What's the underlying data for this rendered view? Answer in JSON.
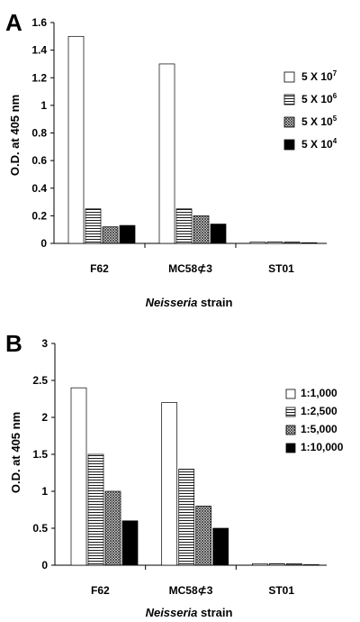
{
  "chart_data": [
    {
      "type": "bar",
      "panel_label": "A",
      "ylabel": "O.D. at 405 nm",
      "xlabel_italic": "Neisseria",
      "xlabel_rest": " strain",
      "ylim": [
        0,
        1.6
      ],
      "yticks": [
        "0",
        "0.2",
        "0.4",
        "0.6",
        "0.8",
        "1",
        "1.2",
        "1.4",
        "1.6"
      ],
      "categories": [
        "F62",
        "MC58⊄3",
        "ST01"
      ],
      "legend_position": "right",
      "series": [
        {
          "name": "5 X 10",
          "sup": "7",
          "pattern": "white",
          "values": [
            1.5,
            1.3,
            0.01
          ]
        },
        {
          "name": "5 X 10",
          "sup": "6",
          "pattern": "hlines",
          "values": [
            0.25,
            0.25,
            0.01
          ]
        },
        {
          "name": "5 X 10",
          "sup": "5",
          "pattern": "crosshatch",
          "values": [
            0.12,
            0.2,
            0.01
          ]
        },
        {
          "name": "5 X 10",
          "sup": "4",
          "pattern": "black",
          "values": [
            0.13,
            0.14,
            0.005
          ]
        }
      ]
    },
    {
      "type": "bar",
      "panel_label": "B",
      "ylabel": "O.D. at 405 nm",
      "xlabel_italic": "Neisseria",
      "xlabel_rest": " strain",
      "ylim": [
        0,
        3
      ],
      "yticks": [
        "0",
        "0.5",
        "1",
        "1.5",
        "2",
        "2.5",
        "3"
      ],
      "categories": [
        "F62",
        "MC58⊄3",
        "ST01"
      ],
      "legend_position": "top-right",
      "series": [
        {
          "name": "1:1,000",
          "sup": "",
          "pattern": "white",
          "values": [
            2.4,
            2.2,
            0.02
          ]
        },
        {
          "name": "1:2,500",
          "sup": "",
          "pattern": "hlines",
          "values": [
            1.5,
            1.3,
            0.02
          ]
        },
        {
          "name": "1:5,000",
          "sup": "",
          "pattern": "crosshatch",
          "values": [
            1.0,
            0.8,
            0.02
          ]
        },
        {
          "name": "1:10,000",
          "sup": "",
          "pattern": "black",
          "values": [
            0.6,
            0.5,
            0.0
          ]
        }
      ]
    }
  ]
}
